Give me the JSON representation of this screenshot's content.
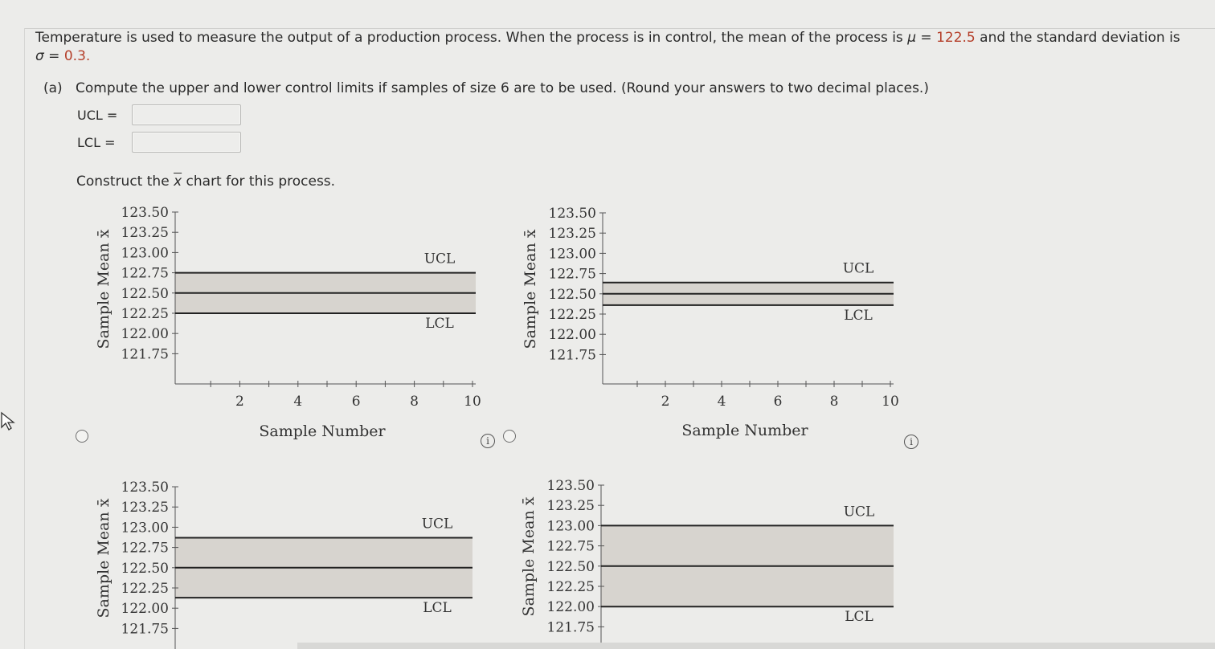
{
  "problem": {
    "text1": "Temperature is used to measure the output of a production process. When the process is in control, the mean of the process is ",
    "mu_symbol": "μ",
    "eq1": " = ",
    "mu_value": "122.5",
    "text2": " and the standard deviation is",
    "sigma_symbol": "σ",
    "eq2": " = ",
    "sigma_value": "0.3",
    "period": "."
  },
  "part_a": {
    "label": "(a)",
    "prompt": "Compute the upper and lower control limits if samples of size 6 are to be used. (Round your answers to two decimal places.)",
    "ucl_label": "UCL  =",
    "ucl_value": "",
    "lcl_label": "LCL  =",
    "lcl_value": ""
  },
  "construct": {
    "before": "Construct the ",
    "xbar": "x",
    "after": " chart for this process."
  },
  "info_glyph": "i",
  "colors": {
    "accent_red": "#b5402b",
    "band_fill": "#d7d4cf",
    "line": "#222222"
  },
  "chart_data": [
    {
      "type": "line",
      "option": 1,
      "ylabel": "Sample Mean x̄",
      "xlabel": "Sample Number",
      "yticks": [
        "123.50",
        "123.25",
        "123.00",
        "122.75",
        "122.50",
        "122.25",
        "122.00",
        "121.75"
      ],
      "xticks": [
        "2",
        "4",
        "6",
        "8",
        "10"
      ],
      "ylim": [
        121.75,
        123.5
      ],
      "xlim": [
        0,
        10
      ],
      "ucl": 122.75,
      "center": 122.5,
      "lcl": 122.25,
      "ucl_label": "UCL",
      "lcl_label": "LCL"
    },
    {
      "type": "line",
      "option": 2,
      "ylabel": "Sample Mean x̄",
      "xlabel": "Sample Number",
      "yticks": [
        "123.50",
        "123.25",
        "123.00",
        "122.75",
        "122.50",
        "122.25",
        "122.00",
        "121.75"
      ],
      "xticks": [
        "2",
        "4",
        "6",
        "8",
        "10"
      ],
      "ylim": [
        121.75,
        123.5
      ],
      "xlim": [
        0,
        10
      ],
      "ucl": 122.64,
      "center": 122.5,
      "lcl": 122.36,
      "ucl_label": "UCL",
      "lcl_label": "LCL"
    },
    {
      "type": "line",
      "option": 3,
      "ylabel": "Sample Mean x̄",
      "xlabel": "",
      "yticks": [
        "123.50",
        "123.25",
        "123.00",
        "122.75",
        "122.50",
        "122.25",
        "122.00",
        "121.75"
      ],
      "xticks": [],
      "ylim": [
        121.75,
        123.5
      ],
      "xlim": [
        0,
        10
      ],
      "ucl": 122.87,
      "center": 122.5,
      "lcl": 122.13,
      "ucl_label": "UCL",
      "lcl_label": "LCL"
    },
    {
      "type": "line",
      "option": 4,
      "ylabel": "Sample Mean x̄",
      "xlabel": "",
      "yticks": [
        "123.50",
        "123.25",
        "123.00",
        "122.75",
        "122.50",
        "122.25",
        "122.00",
        "121.75"
      ],
      "xticks": [],
      "ylim": [
        121.75,
        123.5
      ],
      "xlim": [
        0,
        10
      ],
      "ucl": 123.0,
      "center": 122.5,
      "lcl": 122.0,
      "ucl_label": "UCL",
      "lcl_label": "LCL"
    }
  ]
}
